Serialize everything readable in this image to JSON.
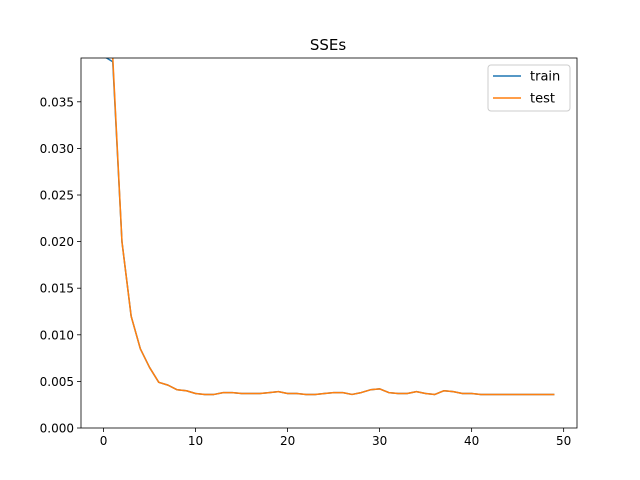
{
  "chart_data": {
    "type": "line",
    "title": "SSEs",
    "xlabel": "",
    "ylabel": "",
    "xlim": [
      -2.45,
      51.45
    ],
    "ylim": [
      0.0,
      0.0397
    ],
    "x_ticks": [
      0,
      10,
      20,
      30,
      40,
      50
    ],
    "x_tick_labels": [
      "0",
      "10",
      "20",
      "30",
      "40",
      "50"
    ],
    "y_ticks": [
      0.0,
      0.005,
      0.01,
      0.015,
      0.02,
      0.025,
      0.03,
      0.035
    ],
    "y_tick_labels": [
      "0.000",
      "0.005",
      "0.010",
      "0.015",
      "0.020",
      "0.025",
      "0.030",
      "0.035"
    ],
    "grid": false,
    "legend_position": "top-right",
    "x": [
      0,
      1,
      2,
      3,
      4,
      5,
      6,
      7,
      8,
      9,
      10,
      11,
      12,
      13,
      14,
      15,
      16,
      17,
      18,
      19,
      20,
      21,
      22,
      23,
      24,
      25,
      26,
      27,
      28,
      29,
      30,
      31,
      32,
      33,
      34,
      35,
      36,
      37,
      38,
      39,
      40,
      41,
      42,
      43,
      44,
      45,
      46,
      47,
      48,
      49
    ],
    "series": [
      {
        "name": "train",
        "color": "#1f77b4",
        "values": [
          0.0399,
          0.0393,
          0.02,
          0.012,
          0.0085,
          0.0065,
          0.0049,
          0.0046,
          0.0041,
          0.004,
          0.0037,
          0.0036,
          0.0036,
          0.0038,
          0.0038,
          0.0037,
          0.0037,
          0.0037,
          0.0038,
          0.0039,
          0.0037,
          0.0037,
          0.0036,
          0.0036,
          0.0037,
          0.0038,
          0.0038,
          0.0036,
          0.0038,
          0.0041,
          0.0042,
          0.0038,
          0.0037,
          0.0037,
          0.0039,
          0.0037,
          0.0036,
          0.004,
          0.0039,
          0.0037,
          0.0037,
          0.0036,
          0.0036,
          0.0036,
          0.0036,
          0.0036,
          0.0036,
          0.0036,
          0.0036,
          0.0036
        ]
      },
      {
        "name": "test",
        "color": "#ff7f0e",
        "values": [
          0.043,
          0.0398,
          0.02,
          0.012,
          0.0085,
          0.0065,
          0.0049,
          0.0046,
          0.0041,
          0.004,
          0.0037,
          0.0036,
          0.0036,
          0.0038,
          0.0038,
          0.0037,
          0.0037,
          0.0037,
          0.0038,
          0.0039,
          0.0037,
          0.0037,
          0.0036,
          0.0036,
          0.0037,
          0.0038,
          0.0038,
          0.0036,
          0.0038,
          0.0041,
          0.0042,
          0.0038,
          0.0037,
          0.0037,
          0.0039,
          0.0037,
          0.0036,
          0.004,
          0.0039,
          0.0037,
          0.0037,
          0.0036,
          0.0036,
          0.0036,
          0.0036,
          0.0036,
          0.0036,
          0.0036,
          0.0036,
          0.0036
        ]
      }
    ]
  }
}
